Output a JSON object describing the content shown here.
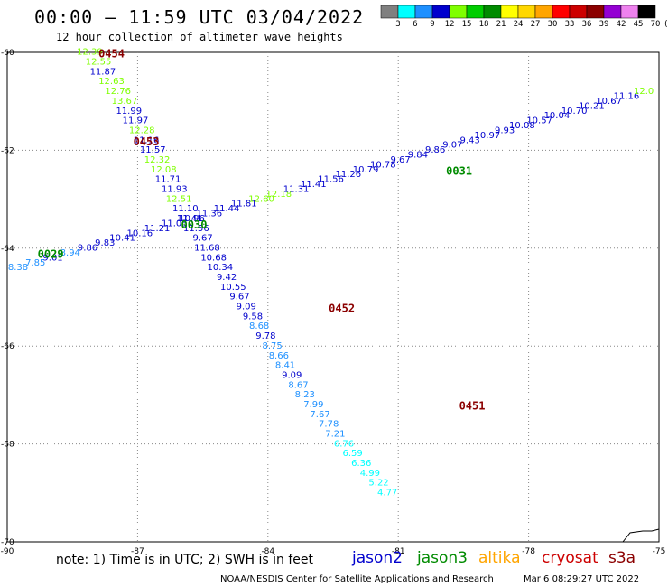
{
  "header": {
    "title": "00:00 – 11:59 UTC 03/04/2022",
    "subtitle": "12 hour collection of altimeter wave heights"
  },
  "colorbar": {
    "labels": [
      "3",
      "6",
      "9",
      "12",
      "15",
      "18",
      "21",
      "24",
      "27",
      "30",
      "33",
      "36",
      "39",
      "42",
      "45",
      "70",
      "(ft)"
    ],
    "colors": [
      "#808080",
      "#00ffff",
      "#1e90ff",
      "#0000cd",
      "#7fff00",
      "#00cd00",
      "#008b00",
      "#ffff00",
      "#ffd700",
      "#ffa500",
      "#ff0000",
      "#cd0000",
      "#8b0000",
      "#9400d3",
      "#ee82ee",
      "#000000"
    ]
  },
  "footer": {
    "note": "note:  1) Time is in UTC;  2) SWH is in feet",
    "credit": "NOAA/NESDIS Center for Satellite Applications and Research",
    "datestamp": "Mar  6 08:29:27 UTC 2022",
    "satellites": [
      {
        "name": "jason2",
        "color": "#0000cd"
      },
      {
        "name": "jason3",
        "color": "#008b00"
      },
      {
        "name": "altika",
        "color": "#ffa500"
      },
      {
        "name": "cryosat",
        "color": "#cd0000"
      },
      {
        "name": "s3a",
        "color": "#8b0000"
      }
    ]
  },
  "chart_data": {
    "type": "scatter",
    "title": "00:00 – 11:59 UTC 03/04/2022",
    "subtitle": "12 hour collection of altimeter wave heights",
    "xlim": [
      -90,
      -75
    ],
    "ylim": [
      -70,
      -60
    ],
    "xticks": [
      "-90",
      "-87",
      "-84",
      "-81",
      "-78",
      "-75"
    ],
    "yticks": [
      "-60",
      "-62",
      "-64",
      "-66",
      "-68",
      "-70"
    ],
    "grid": true,
    "units": "ft",
    "series": [
      {
        "name": "jason2",
        "pass_labels": [
          {
            "text": "0454",
            "x": -87.6,
            "y": -60.1
          },
          {
            "text": "0453",
            "x": -86.8,
            "y": -61.9
          },
          {
            "text": "0452",
            "x": -82.3,
            "y": -65.3
          },
          {
            "text": "0451",
            "x": -79.3,
            "y": -67.3
          }
        ],
        "points": [
          {
            "x": -88.1,
            "y": -60.05,
            "v": "12.39",
            "c": "#7fff00"
          },
          {
            "x": -87.9,
            "y": -60.25,
            "v": "12.55",
            "c": "#7fff00"
          },
          {
            "x": -87.8,
            "y": -60.45,
            "v": "11.87",
            "c": "#0000cd"
          },
          {
            "x": -87.6,
            "y": -60.65,
            "v": "12.63",
            "c": "#7fff00"
          },
          {
            "x": -87.45,
            "y": -60.85,
            "v": "12.76",
            "c": "#7fff00"
          },
          {
            "x": -87.3,
            "y": -61.05,
            "v": "13.67",
            "c": "#7fff00"
          },
          {
            "x": -87.2,
            "y": -61.25,
            "v": "11.99",
            "c": "#0000cd"
          },
          {
            "x": -87.05,
            "y": -61.45,
            "v": "11.97",
            "c": "#0000cd"
          },
          {
            "x": -86.9,
            "y": -61.65,
            "v": "12.28",
            "c": "#7fff00"
          },
          {
            "x": -86.8,
            "y": -61.85,
            "v": "11.16",
            "c": "#0000cd"
          },
          {
            "x": -86.65,
            "y": -62.05,
            "v": "11.57",
            "c": "#0000cd"
          },
          {
            "x": -86.55,
            "y": -62.25,
            "v": "12.32",
            "c": "#7fff00"
          },
          {
            "x": -86.4,
            "y": -62.45,
            "v": "12.08",
            "c": "#7fff00"
          },
          {
            "x": -86.3,
            "y": -62.65,
            "v": "11.71",
            "c": "#0000cd"
          },
          {
            "x": -86.15,
            "y": -62.85,
            "v": "11.93",
            "c": "#0000cd"
          },
          {
            "x": -86.05,
            "y": -63.05,
            "v": "12.51",
            "c": "#7fff00"
          },
          {
            "x": -85.9,
            "y": -63.25,
            "v": "11.10",
            "c": "#0000cd"
          },
          {
            "x": -85.8,
            "y": -63.45,
            "v": "11.41",
            "c": "#0000cd"
          },
          {
            "x": -85.65,
            "y": -63.65,
            "v": "11.56",
            "c": "#0000cd"
          },
          {
            "x": -85.5,
            "y": -63.85,
            "v": "9.67",
            "c": "#0000cd"
          },
          {
            "x": -85.4,
            "y": -64.05,
            "v": "11.68",
            "c": "#0000cd"
          },
          {
            "x": -85.25,
            "y": -64.25,
            "v": "10.68",
            "c": "#0000cd"
          },
          {
            "x": -85.1,
            "y": -64.45,
            "v": "10.34",
            "c": "#0000cd"
          },
          {
            "x": -84.95,
            "y": -64.65,
            "v": "9.42",
            "c": "#0000cd"
          },
          {
            "x": -84.8,
            "y": -64.85,
            "v": "10.55",
            "c": "#0000cd"
          },
          {
            "x": -84.65,
            "y": -65.05,
            "v": "9.67",
            "c": "#0000cd"
          },
          {
            "x": -84.5,
            "y": -65.25,
            "v": "9.09",
            "c": "#0000cd"
          },
          {
            "x": -84.35,
            "y": -65.45,
            "v": "9.58",
            "c": "#0000cd"
          },
          {
            "x": -84.2,
            "y": -65.65,
            "v": "8.68",
            "c": "#1e90ff"
          },
          {
            "x": -84.05,
            "y": -65.85,
            "v": "9.78",
            "c": "#0000cd"
          },
          {
            "x": -83.9,
            "y": -66.05,
            "v": "8.75",
            "c": "#1e90ff"
          },
          {
            "x": -83.75,
            "y": -66.25,
            "v": "8.66",
            "c": "#1e90ff"
          },
          {
            "x": -83.6,
            "y": -66.45,
            "v": "8.41",
            "c": "#1e90ff"
          },
          {
            "x": -83.45,
            "y": -66.65,
            "v": "9.09",
            "c": "#0000cd"
          },
          {
            "x": -83.3,
            "y": -66.85,
            "v": "8.67",
            "c": "#1e90ff"
          },
          {
            "x": -83.15,
            "y": -67.05,
            "v": "8.23",
            "c": "#1e90ff"
          },
          {
            "x": -82.95,
            "y": -67.25,
            "v": "7.99",
            "c": "#1e90ff"
          },
          {
            "x": -82.8,
            "y": -67.45,
            "v": "7.67",
            "c": "#1e90ff"
          },
          {
            "x": -82.6,
            "y": -67.65,
            "v": "7.78",
            "c": "#1e90ff"
          },
          {
            "x": -82.45,
            "y": -67.85,
            "v": "7.21",
            "c": "#1e90ff"
          },
          {
            "x": -82.25,
            "y": -68.05,
            "v": "6.76",
            "c": "#00ffff"
          },
          {
            "x": -82.05,
            "y": -68.25,
            "v": "6.59",
            "c": "#00ffff"
          },
          {
            "x": -81.85,
            "y": -68.45,
            "v": "6.36",
            "c": "#00ffff"
          },
          {
            "x": -81.65,
            "y": -68.65,
            "v": "4.99",
            "c": "#00ffff"
          },
          {
            "x": -81.45,
            "y": -68.85,
            "v": "5.22",
            "c": "#00ffff"
          },
          {
            "x": -81.25,
            "y": -69.05,
            "v": "4.77",
            "c": "#00ffff"
          }
        ]
      },
      {
        "name": "jason3",
        "pass_labels": [
          {
            "text": "0029",
            "x": -89.0,
            "y": -64.2
          },
          {
            "text": "0030",
            "x": -85.7,
            "y": -63.6
          },
          {
            "text": "0031",
            "x": -79.6,
            "y": -62.5
          }
        ],
        "points": [
          {
            "x": -89.75,
            "y": -64.45,
            "v": "8.38",
            "c": "#1e90ff"
          },
          {
            "x": -89.35,
            "y": -64.35,
            "v": "7.85",
            "c": "#1e90ff"
          },
          {
            "x": -88.95,
            "y": -64.25,
            "v": "9.01",
            "c": "#0000cd"
          },
          {
            "x": -88.55,
            "y": -64.15,
            "v": "8.94",
            "c": "#1e90ff"
          },
          {
            "x": -88.15,
            "y": -64.05,
            "v": "9.86",
            "c": "#0000cd"
          },
          {
            "x": -87.75,
            "y": -63.95,
            "v": "9.83",
            "c": "#0000cd"
          },
          {
            "x": -87.35,
            "y": -63.85,
            "v": "10.41",
            "c": "#0000cd"
          },
          {
            "x": -86.95,
            "y": -63.75,
            "v": "10.16",
            "c": "#0000cd"
          },
          {
            "x": -86.55,
            "y": -63.65,
            "v": "11.21",
            "c": "#0000cd"
          },
          {
            "x": -86.15,
            "y": -63.55,
            "v": "11.05",
            "c": "#0000cd"
          },
          {
            "x": -85.75,
            "y": -63.45,
            "v": "10.96",
            "c": "#0000cd"
          },
          {
            "x": -85.35,
            "y": -63.35,
            "v": "11.36",
            "c": "#0000cd"
          },
          {
            "x": -84.95,
            "y": -63.25,
            "v": "11.44",
            "c": "#0000cd"
          },
          {
            "x": -84.55,
            "y": -63.15,
            "v": "11.81",
            "c": "#0000cd"
          },
          {
            "x": -84.15,
            "y": -63.05,
            "v": "12.60",
            "c": "#7fff00"
          },
          {
            "x": -83.75,
            "y": -62.95,
            "v": "12.18",
            "c": "#7fff00"
          },
          {
            "x": -83.35,
            "y": -62.85,
            "v": "11.31",
            "c": "#0000cd"
          },
          {
            "x": -82.95,
            "y": -62.75,
            "v": "11.41",
            "c": "#0000cd"
          },
          {
            "x": -82.55,
            "y": -62.65,
            "v": "11.56",
            "c": "#0000cd"
          },
          {
            "x": -82.15,
            "y": -62.55,
            "v": "11.26",
            "c": "#0000cd"
          },
          {
            "x": -81.75,
            "y": -62.45,
            "v": "10.79",
            "c": "#0000cd"
          },
          {
            "x": -81.35,
            "y": -62.35,
            "v": "10.78",
            "c": "#0000cd"
          },
          {
            "x": -80.95,
            "y": -62.25,
            "v": "9.67",
            "c": "#0000cd"
          },
          {
            "x": -80.55,
            "y": -62.15,
            "v": "9.84",
            "c": "#0000cd"
          },
          {
            "x": -80.15,
            "y": -62.05,
            "v": "9.86",
            "c": "#0000cd"
          },
          {
            "x": -79.75,
            "y": -61.95,
            "v": "9.07",
            "c": "#0000cd"
          },
          {
            "x": -79.35,
            "y": -61.85,
            "v": "9.43",
            "c": "#0000cd"
          },
          {
            "x": -78.95,
            "y": -61.75,
            "v": "10.97",
            "c": "#0000cd"
          },
          {
            "x": -78.55,
            "y": -61.65,
            "v": "9.93",
            "c": "#0000cd"
          },
          {
            "x": -78.15,
            "y": -61.55,
            "v": "10.08",
            "c": "#0000cd"
          },
          {
            "x": -77.75,
            "y": -61.45,
            "v": "10.57",
            "c": "#0000cd"
          },
          {
            "x": -77.35,
            "y": -61.35,
            "v": "10.04",
            "c": "#0000cd"
          },
          {
            "x": -76.95,
            "y": -61.25,
            "v": "10.70",
            "c": "#0000cd"
          },
          {
            "x": -76.55,
            "y": -61.15,
            "v": "10.21",
            "c": "#0000cd"
          },
          {
            "x": -76.15,
            "y": -61.05,
            "v": "10.67",
            "c": "#0000cd"
          },
          {
            "x": -75.75,
            "y": -60.95,
            "v": "11.16",
            "c": "#0000cd"
          },
          {
            "x": -75.35,
            "y": -60.85,
            "v": "12.0",
            "c": "#7fff00"
          }
        ]
      }
    ]
  }
}
